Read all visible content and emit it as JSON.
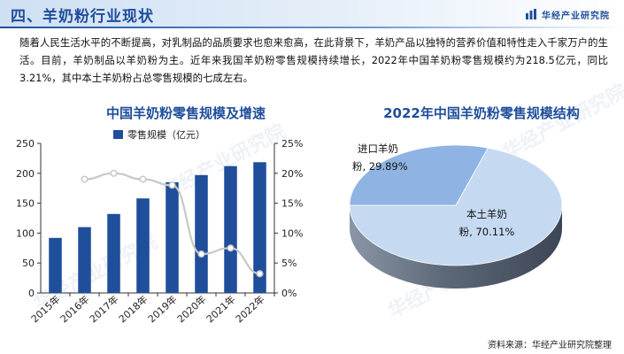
{
  "header": {
    "section_title": "四、羊奶粉行业现状",
    "brand": "华经产业研究院"
  },
  "intro": "随着人民生活水平的不断提高，对乳制品的品质要求也愈来愈高，在此背景下，羊奶产品以独特的营养价值和特性走入千家万户的生活。目前，羊奶制品以羊奶粉为主。近年来我国羊奶粉零售规模持续增长，2022年中国羊奶粉零售规模约为218.5亿元，同比3.21%，其中本土羊奶粉占总零售规模的七成左右。",
  "watermark": "华经产业研究院",
  "source": "资料来源：华经产业研究院整理",
  "colors": {
    "title_blue": "#1f4e9b",
    "bar": "#1f4e9b",
    "line": "#c8c8c8",
    "pie_local": "#c5d9f1",
    "pie_import": "#8fb4e3"
  },
  "chart_data": [
    {
      "type": "bar",
      "title": "中国羊奶粉零售规模及增速",
      "categories": [
        "2015年",
        "2016年",
        "2017年",
        "2018年",
        "2019年",
        "2020年",
        "2021年",
        "2022年"
      ],
      "series": [
        {
          "name": "零售规模（亿元）",
          "type": "bar",
          "axis": "left",
          "values": [
            92,
            110,
            132,
            158,
            185,
            197,
            212,
            218.5
          ]
        },
        {
          "name": "",
          "type": "line",
          "axis": "right",
          "unit": "%",
          "values": [
            null,
            19.0,
            20.0,
            19.0,
            18.0,
            6.5,
            7.5,
            3.21
          ]
        }
      ],
      "ylim": [
        0,
        250
      ],
      "yticks": [
        0,
        50,
        100,
        150,
        200,
        250
      ],
      "y2lim": [
        0,
        25
      ],
      "y2ticks": [
        "0%",
        "5%",
        "10%",
        "15%",
        "20%",
        "25%"
      ],
      "legend": "top"
    },
    {
      "type": "pie",
      "title": "2022年中国羊奶粉零售规模结构",
      "slices": [
        {
          "label": "本土羊奶粉",
          "value": 70.11,
          "display": "本土羊奶粉, 70.11%"
        },
        {
          "label": "进口羊奶粉",
          "value": 29.89,
          "display": "进口羊奶粉, 29.89%"
        }
      ],
      "label_lines": {
        "local": [
          "本土羊奶",
          "粉, 70.11%"
        ],
        "import": [
          "进口羊奶",
          "粉, 29.89%"
        ]
      }
    }
  ]
}
